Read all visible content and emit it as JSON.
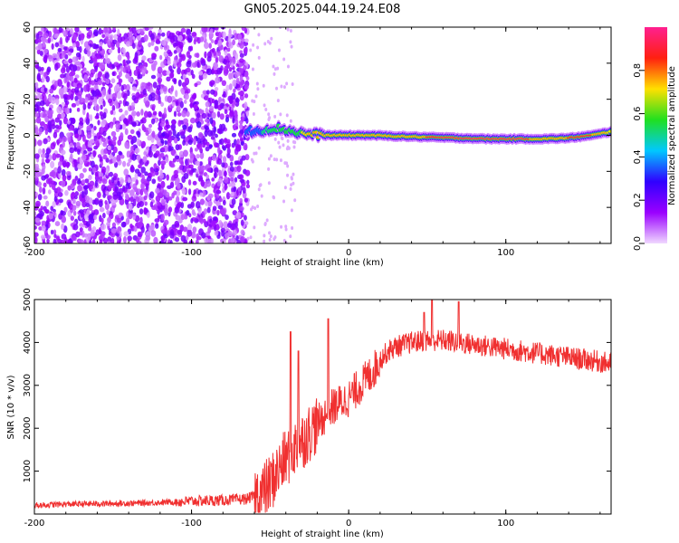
{
  "title": "GN05.2025.044.19.24.E08",
  "colors": {
    "snr_line": "#f03030",
    "axis": "#000000",
    "background": "#ffffff"
  },
  "chart_data": [
    {
      "type": "heatmap",
      "xlabel": "Height of straight line (km)",
      "ylabel": "Frequency (Hz)",
      "xlim": [
        -200,
        167
      ],
      "ylim": [
        -60,
        60
      ],
      "x_ticks": [
        "-200",
        "-100",
        "0",
        "100"
      ],
      "x_tick_values": [
        -200,
        -100,
        0,
        100
      ],
      "y_ticks": [
        "60",
        "40",
        "20",
        "0",
        "-20",
        "-40",
        "-60"
      ],
      "y_tick_values": [
        60,
        40,
        20,
        0,
        -20,
        -40,
        -60
      ],
      "colorbar": {
        "label": "Normalized spectral amplitude",
        "range": [
          0,
          1
        ],
        "ticks": [
          "0.0",
          "0.2",
          "0.4",
          "0.6",
          "0.8"
        ],
        "tick_values": [
          0,
          0.2,
          0.4,
          0.6,
          0.8
        ],
        "colormap": [
          "#f0d8ff",
          "#9a00ff",
          "#3000ff",
          "#00c8ff",
          "#20e020",
          "#ffe000",
          "#ff2010",
          "#ff2090"
        ]
      },
      "broadband_noise": {
        "x_range": [
          -200,
          -64
        ],
        "freq_range": [
          -60,
          60
        ],
        "amplitude": 0.2
      },
      "ridge": [
        {
          "x": -65,
          "f": 2.0,
          "amp": 0.4
        },
        {
          "x": -55,
          "f": 3.0,
          "amp": 0.5
        },
        {
          "x": -45,
          "f": 4.0,
          "amp": 0.55
        },
        {
          "x": -35,
          "f": 2.0,
          "amp": 0.65
        },
        {
          "x": -25,
          "f": 0.5,
          "amp": 0.75
        },
        {
          "x": -15,
          "f": 0.0,
          "amp": 0.8
        },
        {
          "x": 0,
          "f": 0.0,
          "amp": 0.8
        },
        {
          "x": 15,
          "f": 0.0,
          "amp": 0.85
        },
        {
          "x": 30,
          "f": -0.5,
          "amp": 0.85
        },
        {
          "x": 50,
          "f": -1.0,
          "amp": 0.9
        },
        {
          "x": 70,
          "f": -1.5,
          "amp": 0.95
        },
        {
          "x": 90,
          "f": -2.0,
          "amp": 0.97
        },
        {
          "x": 110,
          "f": -2.0,
          "amp": 0.97
        },
        {
          "x": 125,
          "f": -2.0,
          "amp": 0.8
        },
        {
          "x": 140,
          "f": -1.5,
          "amp": 0.9
        },
        {
          "x": 155,
          "f": 0.0,
          "amp": 0.9
        },
        {
          "x": 167,
          "f": 2.0,
          "amp": 0.7
        }
      ]
    },
    {
      "type": "line",
      "xlabel": "Height of straight line (km)",
      "ylabel": "SNR (10 * v/v)",
      "xlim": [
        -200,
        167
      ],
      "ylim": [
        0,
        5000
      ],
      "x_ticks": [
        "-200",
        "-100",
        "0",
        "100"
      ],
      "x_tick_values": [
        -200,
        -100,
        0,
        100
      ],
      "y_ticks": [
        "1000",
        "2000",
        "3000",
        "4000",
        "5000"
      ],
      "y_tick_values": [
        1000,
        2000,
        3000,
        4000,
        5000
      ],
      "series": [
        {
          "color": "#f03030",
          "x": [
            -200,
            -180,
            -160,
            -140,
            -120,
            -100,
            -80,
            -65,
            -55,
            -50,
            -45,
            -40,
            -35,
            -30,
            -25,
            -20,
            -15,
            -10,
            -5,
            0,
            5,
            10,
            15,
            20,
            25,
            30,
            40,
            50,
            60,
            70,
            80,
            90,
            100,
            110,
            120,
            130,
            140,
            150,
            160,
            167
          ],
          "y": [
            200,
            230,
            240,
            250,
            270,
            300,
            320,
            350,
            500,
            700,
            1000,
            1300,
            1500,
            1700,
            1900,
            2100,
            2300,
            2500,
            2600,
            2700,
            2900,
            3100,
            3300,
            3600,
            3800,
            3900,
            4000,
            4050,
            4050,
            4000,
            3950,
            3900,
            3850,
            3800,
            3750,
            3700,
            3650,
            3600,
            3550,
            3500
          ]
        }
      ],
      "spikes": [
        {
          "x": -37,
          "y": 4250
        },
        {
          "x": -32,
          "y": 3800
        },
        {
          "x": -13,
          "y": 4550
        },
        {
          "x": 53,
          "y": 5000
        },
        {
          "x": 70,
          "y": 4950
        },
        {
          "x": 48,
          "y": 4700
        }
      ]
    }
  ]
}
